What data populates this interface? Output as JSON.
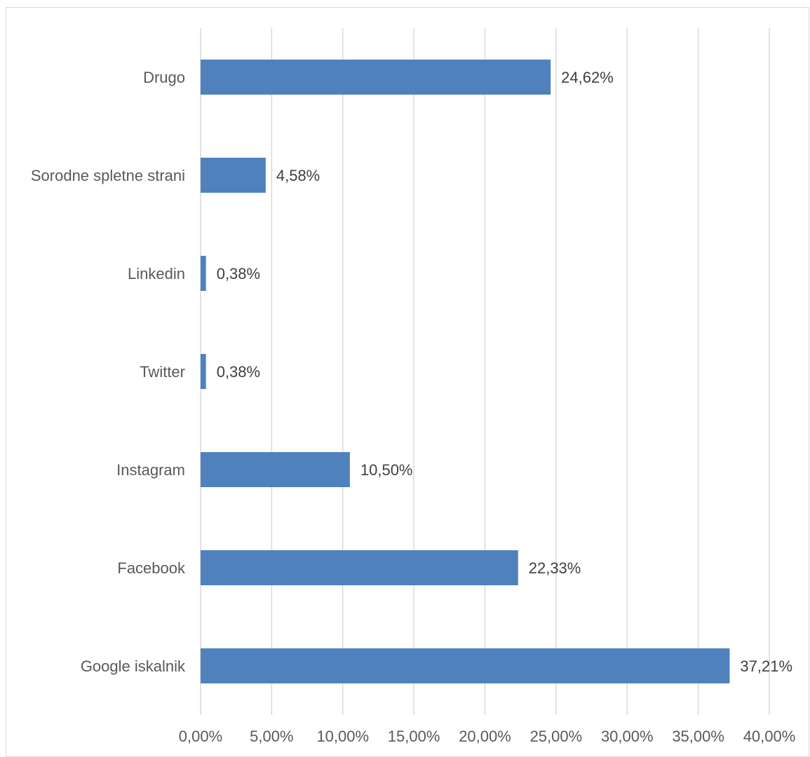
{
  "chart_data": {
    "type": "bar",
    "orientation": "horizontal",
    "categories": [
      "Drugo",
      "Sorodne spletne strani",
      "Linkedin",
      "Twitter",
      "Instagram",
      "Facebook",
      "Google iskalnik"
    ],
    "values": [
      24.62,
      4.58,
      0.38,
      0.38,
      10.5,
      22.33,
      37.21
    ],
    "data_labels": [
      "24,62%",
      "4,58%",
      "0,38%",
      "0,38%",
      "10,50%",
      "22,33%",
      "37,21%"
    ],
    "x_ticks": [
      0,
      5,
      10,
      15,
      20,
      25,
      30,
      35,
      40
    ],
    "x_tick_labels": [
      "0,00%",
      "5,00%",
      "10,00%",
      "15,00%",
      "20,00%",
      "25,00%",
      "30,00%",
      "35,00%",
      "40,00%"
    ],
    "xlim": [
      0,
      40
    ],
    "title": "",
    "xlabel": "",
    "ylabel": "",
    "grid": "vertical",
    "legend": "none",
    "bar_color": "#4f81bd",
    "grid_color": "#d9d9d9"
  }
}
